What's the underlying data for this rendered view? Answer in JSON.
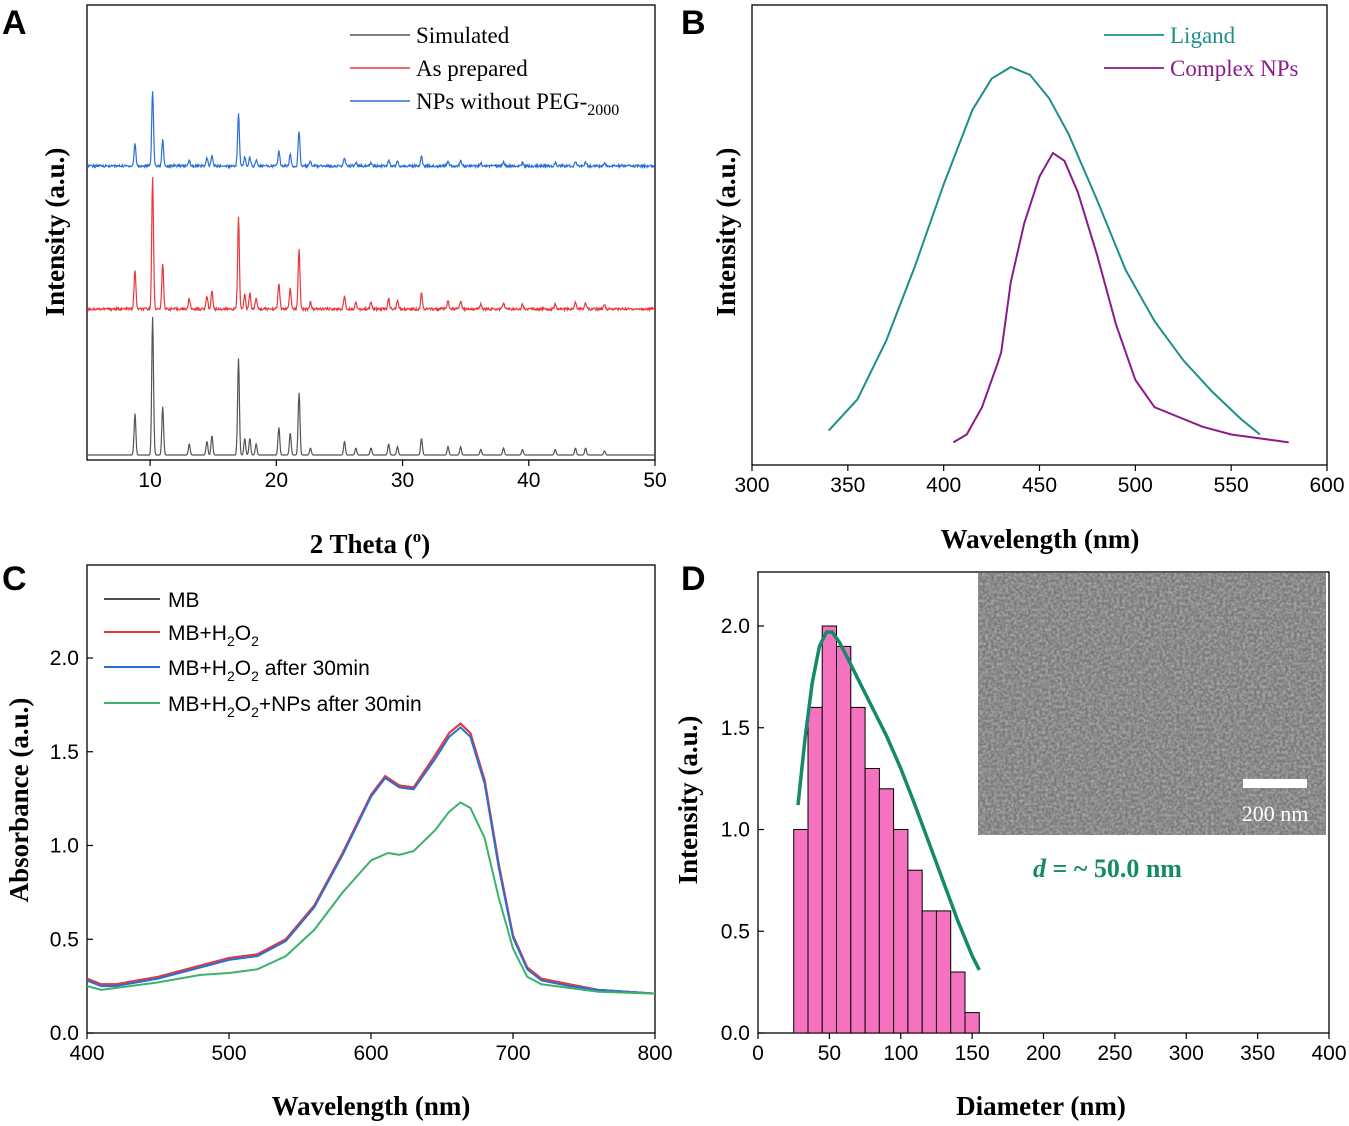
{
  "chart_data": [
    {
      "panel": "A",
      "type": "line",
      "title": "",
      "xlabel": "2 Theta (o)",
      "xlabel_main": "2 Theta (",
      "xlabel_sup": "o",
      "xlabel_close": ")",
      "ylabel": "Intensity (a.u.)",
      "xlim": [
        5,
        50
      ],
      "xticks": [
        "10",
        "20",
        "30",
        "40",
        "50"
      ],
      "grid": false,
      "legend_position": "top-right",
      "peaks": [
        {
          "x": 8.8,
          "h": 0.3
        },
        {
          "x": 10.2,
          "h": 1.0
        },
        {
          "x": 11.0,
          "h": 0.35
        },
        {
          "x": 13.1,
          "h": 0.08
        },
        {
          "x": 14.5,
          "h": 0.1
        },
        {
          "x": 14.9,
          "h": 0.14
        },
        {
          "x": 17.0,
          "h": 0.7
        },
        {
          "x": 17.5,
          "h": 0.12
        },
        {
          "x": 17.9,
          "h": 0.12
        },
        {
          "x": 18.4,
          "h": 0.08
        },
        {
          "x": 20.2,
          "h": 0.2
        },
        {
          "x": 21.1,
          "h": 0.16
        },
        {
          "x": 21.8,
          "h": 0.45
        },
        {
          "x": 22.7,
          "h": 0.05
        },
        {
          "x": 25.4,
          "h": 0.1
        },
        {
          "x": 26.3,
          "h": 0.05
        },
        {
          "x": 27.5,
          "h": 0.05
        },
        {
          "x": 28.9,
          "h": 0.08
        },
        {
          "x": 29.6,
          "h": 0.06
        },
        {
          "x": 31.5,
          "h": 0.12
        },
        {
          "x": 33.6,
          "h": 0.06
        },
        {
          "x": 34.6,
          "h": 0.06
        },
        {
          "x": 36.2,
          "h": 0.04
        },
        {
          "x": 38.0,
          "h": 0.05
        },
        {
          "x": 39.5,
          "h": 0.04
        },
        {
          "x": 42.1,
          "h": 0.04
        },
        {
          "x": 43.7,
          "h": 0.05
        },
        {
          "x": 44.5,
          "h": 0.05
        },
        {
          "x": 46.0,
          "h": 0.03
        }
      ],
      "series": [
        {
          "name": "Simulated",
          "color": "#555555",
          "offset": 0.0,
          "scale": 1.0
        },
        {
          "name": "As prepared",
          "color": "#e8383d",
          "offset": 1.05,
          "scale": 0.95
        },
        {
          "name": "NPs without PEG-2000",
          "legend_main": "NPs without PEG-",
          "legend_sub": "2000",
          "color": "#2a6fd6",
          "offset": 2.05,
          "scale": 0.55
        }
      ]
    },
    {
      "panel": "B",
      "type": "line",
      "title": "",
      "xlabel": "Wavelength (nm)",
      "ylabel": "Intensity (a.u.)",
      "xlim": [
        300,
        600
      ],
      "xticks": [
        "300",
        "350",
        "400",
        "450",
        "500",
        "550",
        "600"
      ],
      "ylim": [
        0,
        1.1
      ],
      "grid": false,
      "legend_position": "top-right",
      "series": [
        {
          "name": "Ligand",
          "color": "#1c8f88",
          "x": [
            340,
            355,
            370,
            385,
            400,
            415,
            425,
            435,
            445,
            455,
            465,
            480,
            495,
            510,
            525,
            540,
            555,
            565
          ],
          "y": [
            0.07,
            0.15,
            0.3,
            0.49,
            0.7,
            0.89,
            0.97,
            1.0,
            0.98,
            0.92,
            0.83,
            0.66,
            0.48,
            0.35,
            0.25,
            0.17,
            0.1,
            0.06
          ]
        },
        {
          "name": "Complex NPs",
          "color": "#8c1a8c",
          "x": [
            405,
            412,
            420,
            428,
            430,
            435,
            442,
            450,
            457,
            463,
            470,
            480,
            490,
            500,
            510,
            520,
            535,
            550,
            565,
            580
          ],
          "y": [
            0.04,
            0.06,
            0.13,
            0.24,
            0.27,
            0.45,
            0.6,
            0.72,
            0.78,
            0.76,
            0.68,
            0.52,
            0.34,
            0.2,
            0.13,
            0.11,
            0.08,
            0.06,
            0.05,
            0.04
          ]
        }
      ]
    },
    {
      "panel": "C",
      "type": "line",
      "title": "",
      "xlabel": "Wavelength (nm)",
      "ylabel": "Absorbance (a.u.)",
      "xlim": [
        400,
        800
      ],
      "ylim": [
        0,
        2.4
      ],
      "xticks": [
        "400",
        "500",
        "600",
        "700",
        "800"
      ],
      "yticks": [
        "0.0",
        "0.5",
        "1.0",
        "1.5",
        "2.0"
      ],
      "grid": false,
      "legend_position": "top-left",
      "series": [
        {
          "name": "MB",
          "legend": [
            "MB"
          ],
          "color": "#4d4d4d",
          "x": [
            400,
            410,
            420,
            450,
            480,
            500,
            520,
            540,
            560,
            580,
            600,
            610,
            620,
            630,
            645,
            655,
            663,
            670,
            680,
            690,
            700,
            710,
            720,
            740,
            760,
            800
          ],
          "y": [
            0.29,
            0.26,
            0.26,
            0.3,
            0.36,
            0.4,
            0.42,
            0.5,
            0.68,
            0.96,
            1.27,
            1.37,
            1.32,
            1.31,
            1.48,
            1.6,
            1.65,
            1.6,
            1.35,
            0.9,
            0.52,
            0.35,
            0.29,
            0.26,
            0.23,
            0.21
          ]
        },
        {
          "name": "MB+H2O2",
          "legend": [
            "MB+H",
            "2",
            "O",
            "2",
            ""
          ],
          "color": "#e8383d",
          "x": [
            400,
            410,
            420,
            450,
            480,
            500,
            520,
            540,
            560,
            580,
            600,
            610,
            620,
            630,
            645,
            655,
            663,
            670,
            680,
            690,
            700,
            710,
            720,
            740,
            760,
            800
          ],
          "y": [
            0.29,
            0.26,
            0.26,
            0.3,
            0.36,
            0.4,
            0.42,
            0.5,
            0.68,
            0.96,
            1.27,
            1.37,
            1.32,
            1.31,
            1.48,
            1.6,
            1.65,
            1.6,
            1.35,
            0.9,
            0.52,
            0.35,
            0.29,
            0.26,
            0.23,
            0.21
          ]
        },
        {
          "name": "MB+H2O2 after 30min",
          "legend": [
            "MB+H",
            "2",
            "O",
            "2",
            " after 30min"
          ],
          "color": "#2a6fd6",
          "x": [
            400,
            410,
            420,
            450,
            480,
            500,
            520,
            540,
            560,
            580,
            600,
            610,
            620,
            630,
            645,
            655,
            663,
            670,
            680,
            690,
            700,
            710,
            720,
            740,
            760,
            800
          ],
          "y": [
            0.28,
            0.25,
            0.25,
            0.29,
            0.35,
            0.39,
            0.41,
            0.49,
            0.67,
            0.95,
            1.26,
            1.36,
            1.31,
            1.3,
            1.46,
            1.58,
            1.63,
            1.58,
            1.33,
            0.88,
            0.51,
            0.34,
            0.28,
            0.25,
            0.23,
            0.21
          ]
        },
        {
          "name": "MB+H2O2+NPs after 30min",
          "legend": [
            "MB+H",
            "2",
            "O",
            "2",
            "+NPs after 30min"
          ],
          "color": "#3bb26a",
          "x": [
            400,
            410,
            420,
            450,
            480,
            500,
            520,
            540,
            560,
            580,
            600,
            612,
            620,
            630,
            645,
            655,
            663,
            670,
            680,
            690,
            700,
            710,
            720,
            740,
            760,
            800
          ],
          "y": [
            0.25,
            0.23,
            0.24,
            0.27,
            0.31,
            0.32,
            0.34,
            0.41,
            0.55,
            0.75,
            0.92,
            0.96,
            0.95,
            0.97,
            1.08,
            1.18,
            1.23,
            1.2,
            1.04,
            0.72,
            0.45,
            0.3,
            0.26,
            0.24,
            0.22,
            0.21
          ]
        }
      ]
    },
    {
      "panel": "D",
      "type": "bar",
      "title": "",
      "xlabel": "Diameter (nm)",
      "ylabel": "Intensity (a.u.)",
      "xlim": [
        0,
        400
      ],
      "ylim": [
        0,
        2.3
      ],
      "xticks": [
        "0",
        "50",
        "100",
        "150",
        "200",
        "250",
        "300",
        "350",
        "400"
      ],
      "yticks": [
        "0.0",
        "0.5",
        "1.0",
        "1.5",
        "2.0"
      ],
      "grid": false,
      "bin_width": 10,
      "bin_starts": [
        25,
        35,
        45,
        55,
        65,
        75,
        85,
        95,
        105,
        115,
        125,
        135,
        145
      ],
      "values": [
        1.0,
        1.6,
        2.0,
        1.9,
        1.6,
        1.3,
        1.2,
        1.0,
        0.8,
        0.6,
        0.6,
        0.3,
        0.1
      ],
      "bar_color": "#f472c0",
      "fit": {
        "color": "#148a66",
        "x": [
          28,
          33,
          38,
          43,
          48,
          52,
          57,
          63,
          70,
          80,
          90,
          100,
          110,
          120,
          130,
          140,
          150,
          155
        ],
        "y": [
          1.12,
          1.45,
          1.72,
          1.9,
          1.97,
          1.97,
          1.92,
          1.84,
          1.74,
          1.6,
          1.46,
          1.3,
          1.12,
          0.93,
          0.74,
          0.55,
          0.38,
          0.31
        ]
      },
      "annotation_d": "d",
      "annotation_rest": " = ~ 50.0 nm",
      "annotation_color": "#148a66",
      "inset": {
        "scale_bar_label": "200 nm"
      }
    }
  ]
}
